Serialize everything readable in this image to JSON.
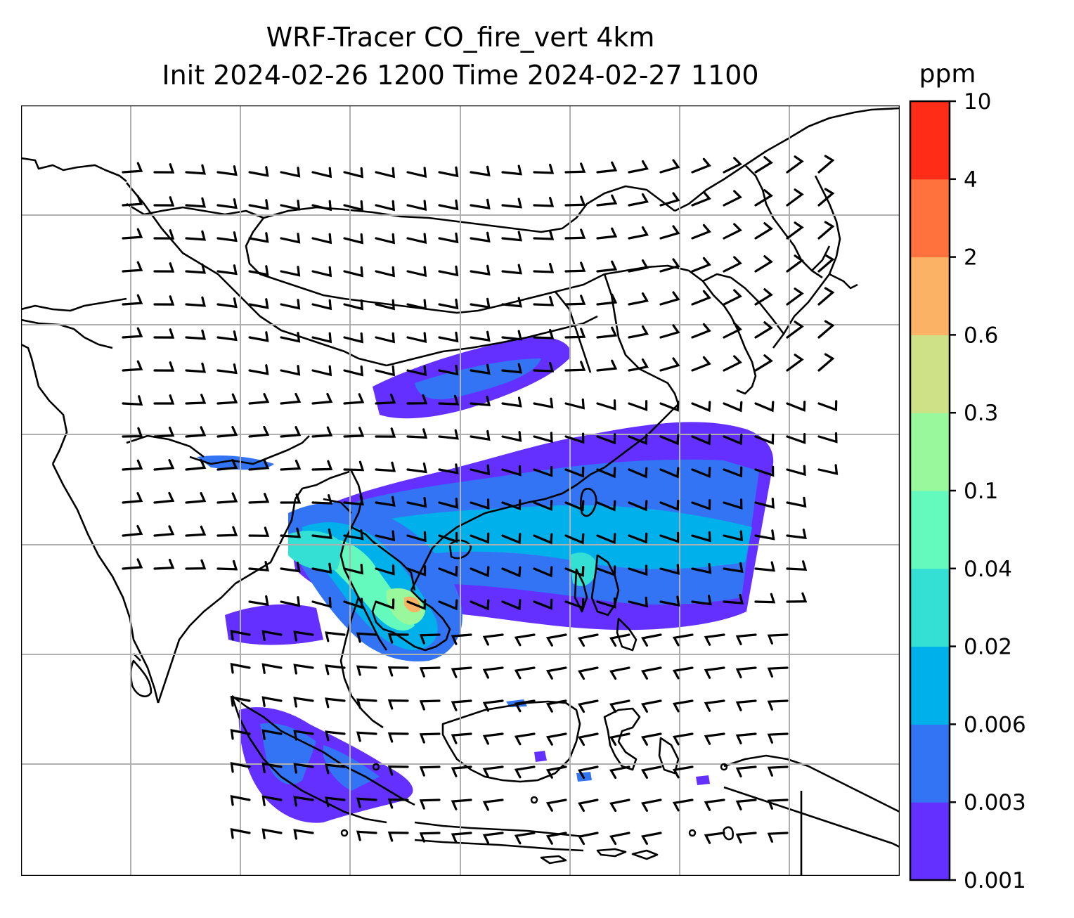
{
  "title": {
    "line1": "WRF-Tracer CO_fire_vert 4km",
    "line2": "Init 2024-02-26 1200 Time 2024-02-27 1100"
  },
  "colorbar": {
    "unit": "ppm",
    "ticks": [
      "0.001",
      "0.003",
      "0.006",
      "0.02",
      "0.04",
      "0.1",
      "0.3",
      "0.6",
      "2",
      "4",
      "10"
    ],
    "colors": [
      "#6330ff",
      "#3374f5",
      "#00b0ea",
      "#34dfd4",
      "#64fabe",
      "#9af89c",
      "#cfe187",
      "#fcb265",
      "#ff723e",
      "#ff2c18"
    ]
  },
  "map": {
    "gridlines": "on",
    "wind_barbs": "shown",
    "coastlines_color": "#000000"
  }
}
